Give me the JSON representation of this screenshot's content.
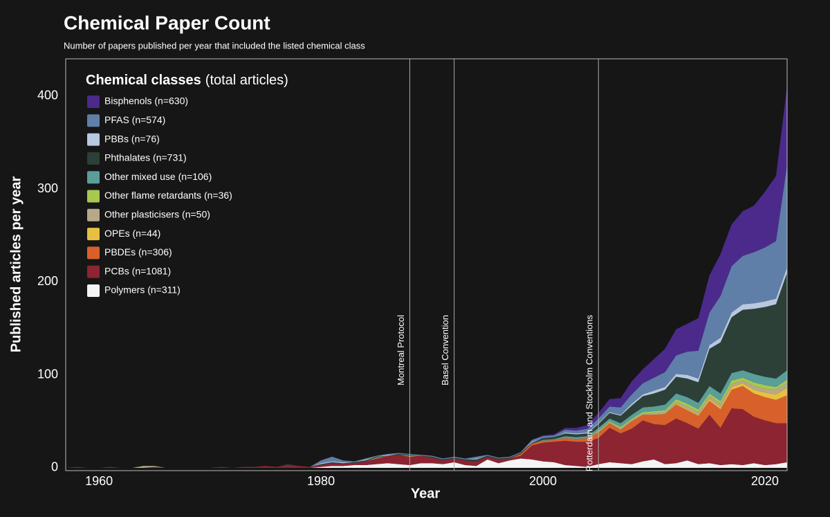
{
  "chart_data": {
    "type": "stacked_area",
    "title": "Chemical Paper Count",
    "subtitle": "Number of papers published per year that included the listed chemical class",
    "x_label": "Year",
    "y_label": "Published articles per year",
    "legend_title": "Chemical classes",
    "legend_subtitle": "(total articles)",
    "legend_position": "upper left",
    "xlim": [
      1957,
      2022
    ],
    "xticks": [
      1960,
      1980,
      2000,
      2020
    ],
    "ylim": [
      -3,
      440
    ],
    "yticks": [
      0,
      100,
      200,
      300,
      400
    ],
    "annotations": [
      {
        "text": "Montreal Protocol",
        "x": 1988
      },
      {
        "text": "Basel Convention",
        "x": 1992
      },
      {
        "text": "Rotterdam and Stockholm Conventions",
        "x": 2005
      }
    ],
    "x": [
      1957,
      1958,
      1959,
      1960,
      1961,
      1962,
      1963,
      1964,
      1965,
      1966,
      1967,
      1968,
      1969,
      1970,
      1971,
      1972,
      1973,
      1974,
      1975,
      1976,
      1977,
      1978,
      1979,
      1980,
      1981,
      1982,
      1983,
      1984,
      1985,
      1986,
      1987,
      1988,
      1989,
      1990,
      1991,
      1992,
      1993,
      1994,
      1995,
      1996,
      1997,
      1998,
      1999,
      2000,
      2001,
      2002,
      2003,
      2004,
      2005,
      2006,
      2007,
      2008,
      2009,
      2010,
      2011,
      2012,
      2013,
      2014,
      2015,
      2016,
      2017,
      2018,
      2019,
      2020,
      2021,
      2022
    ],
    "series": [
      {
        "name": "Polymers (n=311)",
        "color": "#f4f4f4",
        "values": [
          0,
          0,
          0,
          0,
          0,
          0,
          0,
          0,
          0,
          0,
          0,
          0,
          0,
          0,
          0,
          0,
          0,
          0,
          0,
          0,
          0,
          0,
          0,
          1,
          2,
          2,
          3,
          3,
          4,
          5,
          4,
          3,
          5,
          5,
          4,
          6,
          3,
          2,
          9,
          5,
          8,
          10,
          9,
          7,
          6,
          3,
          2,
          1,
          4,
          6,
          5,
          4,
          7,
          9,
          4,
          5,
          8,
          4,
          5,
          3,
          4,
          3,
          5,
          3,
          4,
          6
        ]
      },
      {
        "name": "PCBs (n=1081)",
        "color": "#8c2432",
        "values": [
          0,
          1,
          0,
          0,
          1,
          0,
          0,
          0,
          1,
          0,
          0,
          0,
          0,
          0,
          1,
          0,
          1,
          1,
          2,
          1,
          3,
          2,
          1,
          2,
          3,
          3,
          2,
          4,
          6,
          8,
          10,
          9,
          8,
          6,
          4,
          4,
          5,
          5,
          3,
          4,
          2,
          3,
          15,
          20,
          22,
          26,
          26,
          27,
          28,
          37,
          32,
          38,
          44,
          38,
          42,
          48,
          40,
          38,
          52,
          40,
          60,
          60,
          50,
          48,
          44,
          42
        ]
      },
      {
        "name": "PBDEs (n=306)",
        "color": "#d8602a",
        "values": [
          0,
          0,
          0,
          0,
          0,
          0,
          0,
          0,
          0,
          0,
          0,
          0,
          0,
          0,
          0,
          0,
          0,
          0,
          0,
          0,
          0,
          0,
          0,
          0,
          0,
          0,
          0,
          0,
          0,
          0,
          0,
          0,
          0,
          0,
          0,
          0,
          0,
          0,
          0,
          0,
          0,
          2,
          2,
          2,
          2,
          3,
          3,
          4,
          6,
          5,
          4,
          8,
          6,
          10,
          12,
          15,
          14,
          14,
          15,
          20,
          20,
          25,
          25,
          25,
          25,
          30
        ]
      },
      {
        "name": "OPEs (n=44)",
        "color": "#e8c040",
        "values": [
          0,
          0,
          0,
          0,
          0,
          0,
          0,
          0,
          0,
          0,
          0,
          0,
          0,
          0,
          0,
          0,
          0,
          0,
          0,
          0,
          0,
          0,
          0,
          0,
          0,
          0,
          0,
          0,
          0,
          0,
          0,
          0,
          0,
          0,
          0,
          0,
          0,
          0,
          0,
          0,
          0,
          0,
          0,
          0,
          0,
          0,
          0,
          0,
          0,
          0,
          0,
          0,
          0,
          0,
          0,
          1,
          1,
          1,
          2,
          2,
          3,
          3,
          4,
          5,
          6,
          8
        ]
      },
      {
        "name": "Other plasticisers (n=50)",
        "color": "#b8a888",
        "values": [
          0,
          0,
          0,
          0,
          0,
          0,
          0,
          2,
          1,
          0,
          0,
          0,
          0,
          0,
          0,
          0,
          0,
          0,
          0,
          0,
          0,
          0,
          0,
          0,
          0,
          0,
          0,
          0,
          0,
          0,
          0,
          0,
          0,
          0,
          0,
          0,
          0,
          0,
          0,
          0,
          0,
          0,
          0,
          0,
          0,
          0,
          0,
          0,
          1,
          1,
          1,
          2,
          1,
          2,
          2,
          2,
          3,
          3,
          3,
          4,
          3,
          3,
          4,
          4,
          5,
          5
        ]
      },
      {
        "name": "Other flame retardants (n=36)",
        "color": "#a8c850",
        "values": [
          0,
          0,
          0,
          0,
          0,
          0,
          0,
          0,
          0,
          0,
          0,
          0,
          0,
          0,
          0,
          0,
          0,
          0,
          0,
          0,
          0,
          0,
          0,
          0,
          0,
          0,
          0,
          0,
          1,
          0,
          0,
          1,
          0,
          0,
          0,
          0,
          0,
          0,
          0,
          0,
          0,
          0,
          0,
          0,
          0,
          0,
          0,
          0,
          1,
          1,
          2,
          1,
          2,
          2,
          2,
          3,
          3,
          3,
          3,
          3,
          4,
          3,
          4,
          4,
          3,
          4
        ]
      },
      {
        "name": "Other mixed use (n=106)",
        "color": "#5a9e9a",
        "values": [
          0,
          0,
          0,
          0,
          0,
          0,
          0,
          0,
          0,
          0,
          0,
          0,
          0,
          0,
          0,
          0,
          0,
          0,
          0,
          0,
          0,
          0,
          0,
          0,
          0,
          0,
          0,
          0,
          0,
          0,
          0,
          0,
          0,
          0,
          0,
          0,
          0,
          0,
          0,
          0,
          0,
          0,
          0,
          1,
          1,
          2,
          2,
          2,
          3,
          3,
          4,
          4,
          5,
          5,
          6,
          6,
          7,
          7,
          8,
          8,
          8,
          8,
          9,
          9,
          9,
          10
        ]
      },
      {
        "name": "Phthalates (n=731)",
        "color": "#2c4038",
        "values": [
          0,
          0,
          0,
          0,
          0,
          0,
          0,
          0,
          0,
          0,
          0,
          0,
          0,
          0,
          0,
          0,
          0,
          0,
          0,
          0,
          1,
          0,
          0,
          1,
          1,
          0,
          1,
          1,
          1,
          0,
          1,
          1,
          0,
          1,
          1,
          1,
          1,
          2,
          1,
          1,
          1,
          1,
          1,
          2,
          2,
          3,
          3,
          3,
          4,
          6,
          8,
          10,
          12,
          14,
          16,
          18,
          20,
          22,
          40,
          55,
          60,
          65,
          70,
          75,
          80,
          105
        ]
      },
      {
        "name": "PBBs (n=76)",
        "color": "#b8c8e0",
        "values": [
          0,
          0,
          0,
          0,
          0,
          0,
          0,
          0,
          0,
          0,
          0,
          0,
          0,
          0,
          0,
          0,
          0,
          0,
          0,
          0,
          0,
          0,
          0,
          1,
          1,
          1,
          0,
          1,
          0,
          1,
          0,
          0,
          0,
          0,
          0,
          0,
          0,
          1,
          0,
          0,
          0,
          0,
          1,
          0,
          0,
          1,
          1,
          1,
          1,
          1,
          1,
          2,
          2,
          3,
          3,
          3,
          4,
          4,
          4,
          5,
          5,
          6,
          6,
          6,
          6,
          6
        ]
      },
      {
        "name": "PFAS (n=574)",
        "color": "#5f7fa8",
        "values": [
          0,
          0,
          0,
          0,
          0,
          0,
          0,
          0,
          0,
          0,
          0,
          0,
          0,
          0,
          0,
          0,
          0,
          0,
          0,
          0,
          0,
          0,
          0,
          3,
          5,
          2,
          1,
          1,
          1,
          1,
          1,
          1,
          1,
          1,
          1,
          1,
          1,
          2,
          1,
          1,
          1,
          1,
          2,
          2,
          2,
          3,
          3,
          4,
          5,
          6,
          8,
          10,
          12,
          14,
          16,
          20,
          25,
          30,
          35,
          45,
          50,
          52,
          55,
          58,
          62,
          110
        ]
      },
      {
        "name": "Bisphenols (n=630)",
        "color": "#4b2a8c",
        "values": [
          0,
          0,
          0,
          0,
          0,
          0,
          0,
          0,
          0,
          0,
          0,
          0,
          0,
          0,
          0,
          0,
          0,
          0,
          0,
          0,
          0,
          0,
          0,
          0,
          0,
          0,
          0,
          0,
          0,
          0,
          0,
          0,
          0,
          0,
          0,
          0,
          0,
          0,
          0,
          0,
          0,
          0,
          0,
          1,
          1,
          2,
          3,
          4,
          6,
          8,
          10,
          14,
          15,
          20,
          25,
          28,
          30,
          35,
          40,
          45,
          45,
          48,
          50,
          60,
          70,
          85
        ]
      }
    ]
  }
}
